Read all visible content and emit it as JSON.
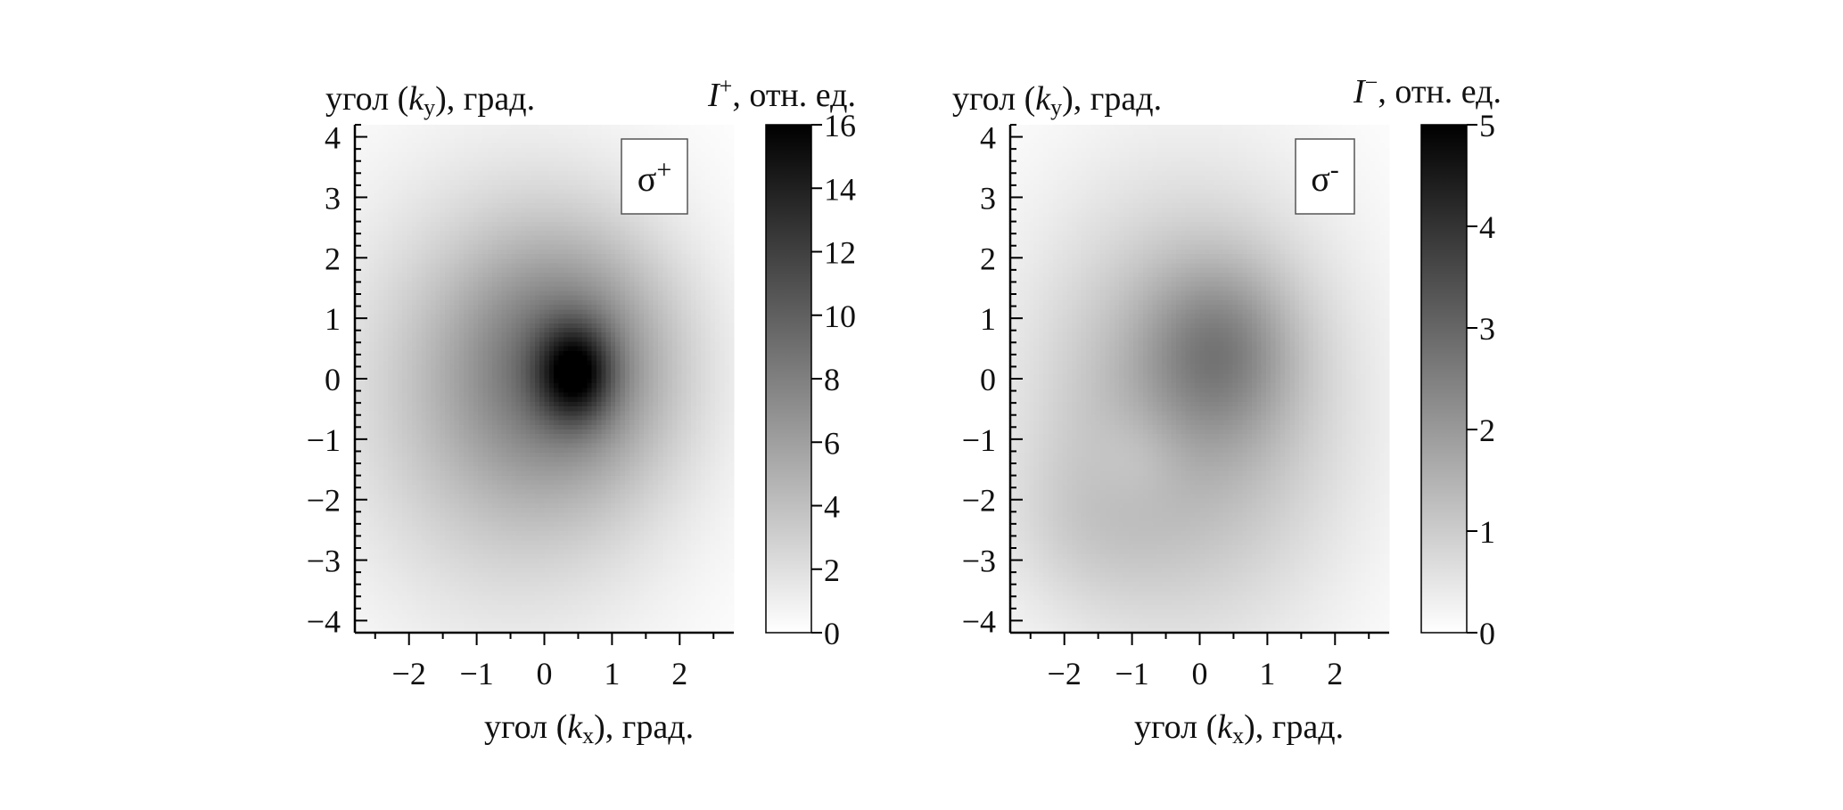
{
  "chart_data": [
    {
      "type": "heatmap",
      "xlabel": {
        "prefix": "угол (",
        "var": "k",
        "sub": "x",
        "suffix": "), град."
      },
      "ylabel": {
        "prefix": "угол (",
        "var": "k",
        "sub": "y",
        "suffix": "), град."
      },
      "xlim": [
        -2.8,
        2.8
      ],
      "ylim": [
        -4.2,
        4.2
      ],
      "xticks": [
        -2,
        -1,
        0,
        1,
        2
      ],
      "xtick_labels": [
        "−2",
        "−1",
        "0",
        "1",
        "2"
      ],
      "yticks": [
        4,
        3,
        2,
        1,
        0,
        -1,
        -2,
        -3,
        -4
      ],
      "ytick_labels": [
        "4",
        "3",
        "2",
        "1",
        "0",
        "−1",
        "−2",
        "−3",
        "−4"
      ],
      "annotation": "σ+",
      "colorbar": {
        "label": {
          "var": "I",
          "sup": "+",
          "suffix": ", отн. ед."
        },
        "range": [
          0,
          16
        ],
        "ticks": [
          0,
          2,
          4,
          6,
          8,
          10,
          12,
          14,
          16
        ],
        "tick_labels": [
          "0",
          "2",
          "4",
          "6",
          "8",
          "10",
          "12",
          "14",
          "16"
        ],
        "colormap": "grayscale",
        "low_color": "#ffffff",
        "high_color": "#000000"
      },
      "components": [
        {
          "x": 0.45,
          "y": 0.1,
          "sx": 0.38,
          "sy": 0.55,
          "amp": 8.5
        },
        {
          "x": 0.35,
          "y": 0.3,
          "sx": 1.1,
          "sy": 1.45,
          "amp": 5.5
        },
        {
          "x": -0.5,
          "y": -0.3,
          "sx": 1.8,
          "sy": 2.5,
          "amp": 4.5
        }
      ],
      "clip_max": 16
    },
    {
      "type": "heatmap",
      "xlabel": {
        "prefix": "угол (",
        "var": "k",
        "sub": "x",
        "suffix": "), град."
      },
      "ylabel": {
        "prefix": "угол (",
        "var": "k",
        "sub": "y",
        "suffix": "), град."
      },
      "xlim": [
        -2.8,
        2.8
      ],
      "ylim": [
        -4.2,
        4.2
      ],
      "xticks": [
        -2,
        -1,
        0,
        1,
        2
      ],
      "xtick_labels": [
        "−2",
        "−1",
        "0",
        "1",
        "2"
      ],
      "yticks": [
        4,
        3,
        2,
        1,
        0,
        -1,
        -2,
        -3,
        -4
      ],
      "ytick_labels": [
        "4",
        "3",
        "2",
        "1",
        "0",
        "−1",
        "−2",
        "−3",
        "−4"
      ],
      "annotation": "σ-",
      "colorbar": {
        "label": {
          "var": "I",
          "sup": "−",
          "suffix": ", отн. ед."
        },
        "range": [
          0,
          5
        ],
        "ticks": [
          0,
          1,
          2,
          3,
          4,
          5
        ],
        "tick_labels": [
          "0",
          "1",
          "2",
          "3",
          "4",
          "5"
        ],
        "colormap": "grayscale",
        "low_color": "#ffffff",
        "high_color": "#000000"
      },
      "components": [
        {
          "x": 0.3,
          "y": 0.5,
          "sx": 0.75,
          "sy": 1.0,
          "amp": 1.3
        },
        {
          "x": -0.2,
          "y": -0.5,
          "sx": 1.7,
          "sy": 2.6,
          "amp": 1.6
        },
        {
          "x": -1.8,
          "y": -2.5,
          "sx": 0.9,
          "sy": 1.0,
          "amp": 0.35
        },
        {
          "x": -0.9,
          "y": -1.3,
          "sx": 0.5,
          "sy": 0.6,
          "amp": -0.35
        }
      ],
      "clip_max": 5
    }
  ]
}
